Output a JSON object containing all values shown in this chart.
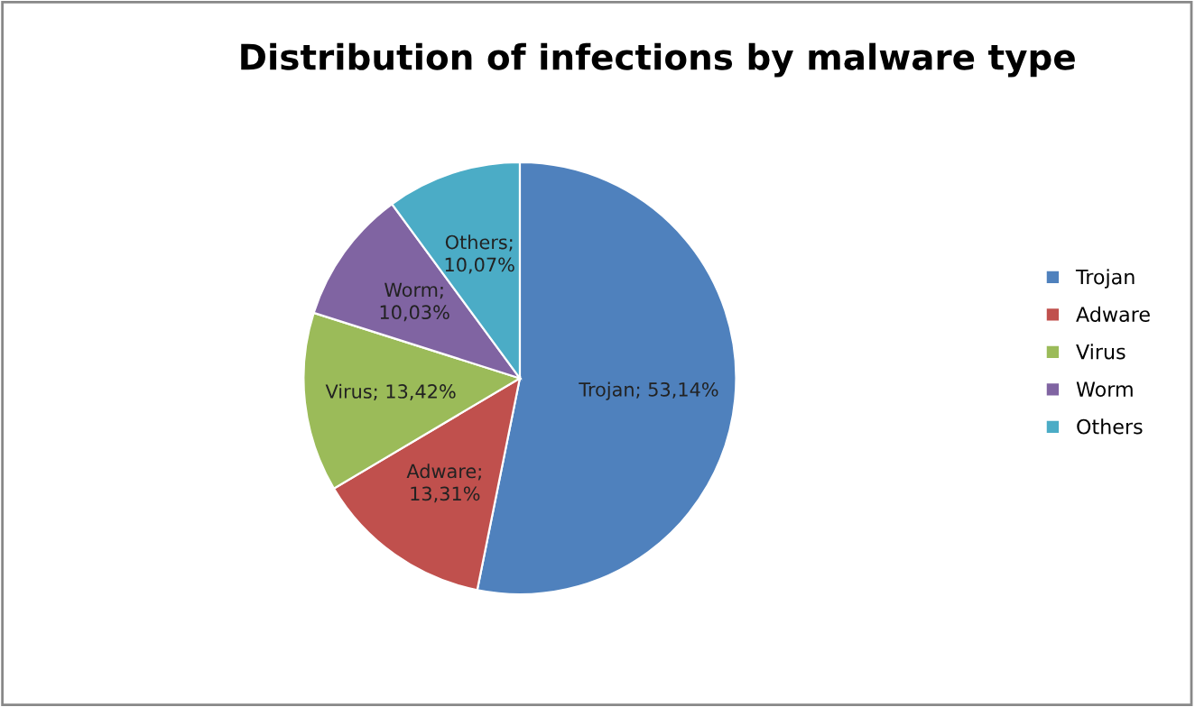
{
  "chart_data": {
    "type": "pie",
    "title": "Distribution of infections by malware type",
    "categories": [
      "Trojan",
      "Adware",
      "Virus",
      "Worm",
      "Others"
    ],
    "values": [
      53.14,
      13.31,
      13.42,
      10.03,
      10.07
    ],
    "colors": [
      "#4f81bd",
      "#c0504d",
      "#9bbb59",
      "#8064a2",
      "#4bacc6"
    ],
    "value_labels": [
      "Trojan; 53,14%",
      "Adware;\n13,31%",
      "Virus; 13,42%",
      "Worm;\n10,03%",
      "Others;\n10,07%"
    ],
    "legend": "right"
  }
}
